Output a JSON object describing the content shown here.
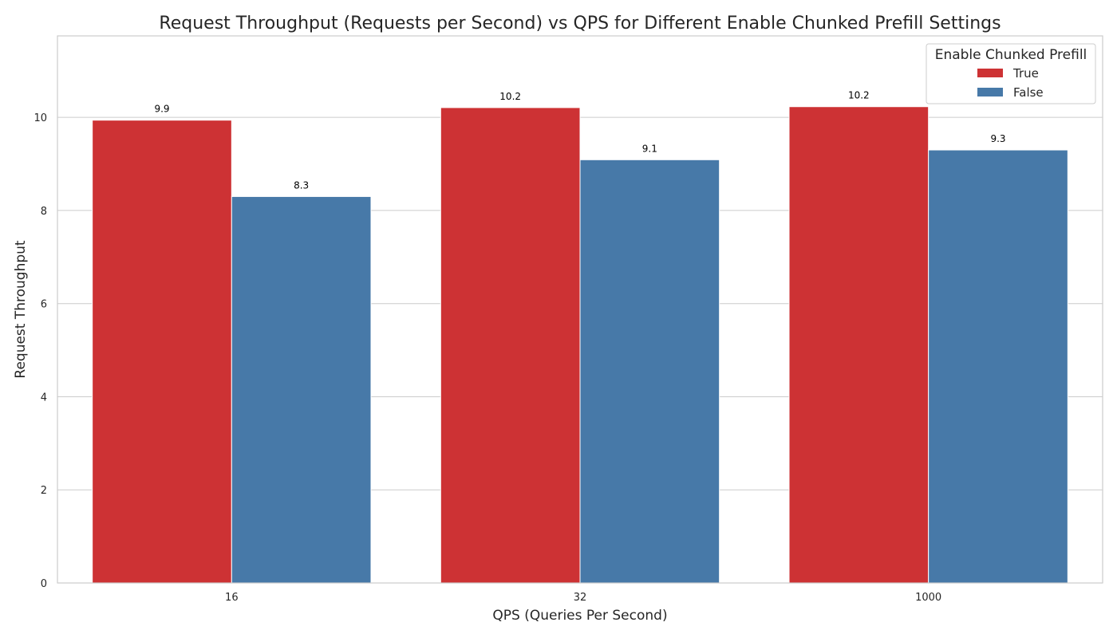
{
  "chart_data": {
    "type": "bar",
    "title": "Request Throughput (Requests per Second) vs QPS for Different Enable Chunked Prefill Settings",
    "xlabel": "QPS (Queries Per Second)",
    "ylabel": "Request Throughput",
    "categories": [
      "16",
      "32",
      "1000"
    ],
    "series": [
      {
        "name": "True",
        "color": "#cd3234",
        "values": [
          9.94,
          10.21,
          10.23
        ],
        "labels": [
          "9.9",
          "10.2",
          "10.2"
        ]
      },
      {
        "name": "False",
        "color": "#4779a8",
        "values": [
          8.3,
          9.09,
          9.3
        ],
        "labels": [
          "8.3",
          "9.1",
          "9.3"
        ]
      }
    ],
    "ylim": [
      0,
      11.75
    ],
    "yticks": [
      0,
      2,
      4,
      6,
      8,
      10
    ],
    "grid": true,
    "legend": {
      "title": "Enable Chunked Prefill",
      "placement": "top-right"
    }
  }
}
